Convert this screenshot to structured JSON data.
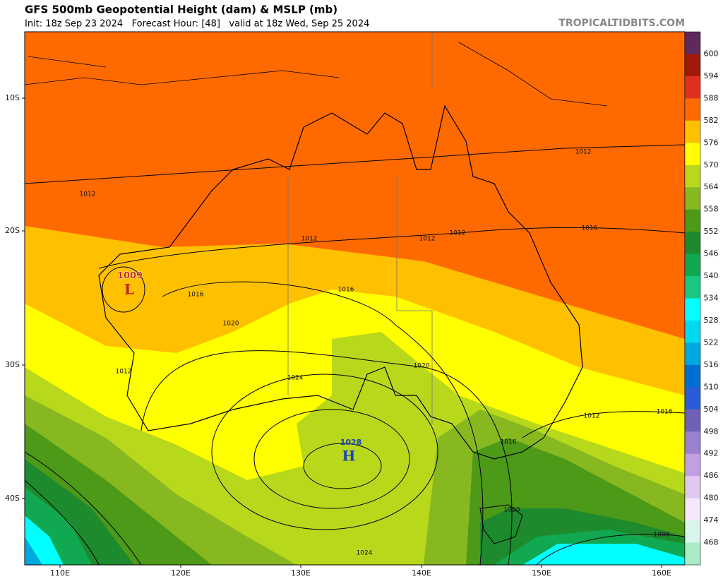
{
  "header": {
    "title": "GFS 500mb Geopotential Height (dam) & MSLP (mb)",
    "subtitle": "Init: 18z Sep 23 2024   Forecast Hour: [48]   valid at 18z Wed, Sep 25 2024",
    "watermark": "TROPICALTIDBITS.COM"
  },
  "map": {
    "lat_labels": [
      "10S",
      "20S",
      "30S",
      "40S"
    ],
    "lon_labels": [
      "110E",
      "120E",
      "130E",
      "140E",
      "150E",
      "160E"
    ],
    "contour_labels": [
      "1012",
      "1012",
      "1012",
      "1012",
      "1012",
      "1016",
      "1016",
      "1016",
      "1020",
      "1012",
      "1024",
      "1020",
      "1012",
      "1016",
      "1016",
      "1020",
      "1024",
      "1008"
    ],
    "lows": [
      {
        "pressure": "1009",
        "symbol": "L"
      }
    ],
    "highs": [
      {
        "pressure": "1028",
        "symbol": "H"
      }
    ]
  },
  "colorbar": {
    "colors": [
      "#5c2a5c",
      "#a01a0a",
      "#e0301e",
      "#ff6a00",
      "#ffc000",
      "#ffff00",
      "#b8d81c",
      "#88b820",
      "#4c9a18",
      "#1e8a2e",
      "#10a850",
      "#18c880",
      "#00ffff",
      "#00d8f0",
      "#00a8e0",
      "#0070d0",
      "#2a5cd8",
      "#7060b8",
      "#9a80d0",
      "#c0a0e0",
      "#e0c8f0",
      "#f4e8fa",
      "#d8f4ec",
      "#a8ecc8"
    ],
    "labels": [
      600,
      594,
      588,
      582,
      576,
      570,
      564,
      558,
      552,
      546,
      540,
      534,
      528,
      522,
      516,
      510,
      504,
      498,
      492,
      486,
      480,
      474,
      468
    ]
  }
}
